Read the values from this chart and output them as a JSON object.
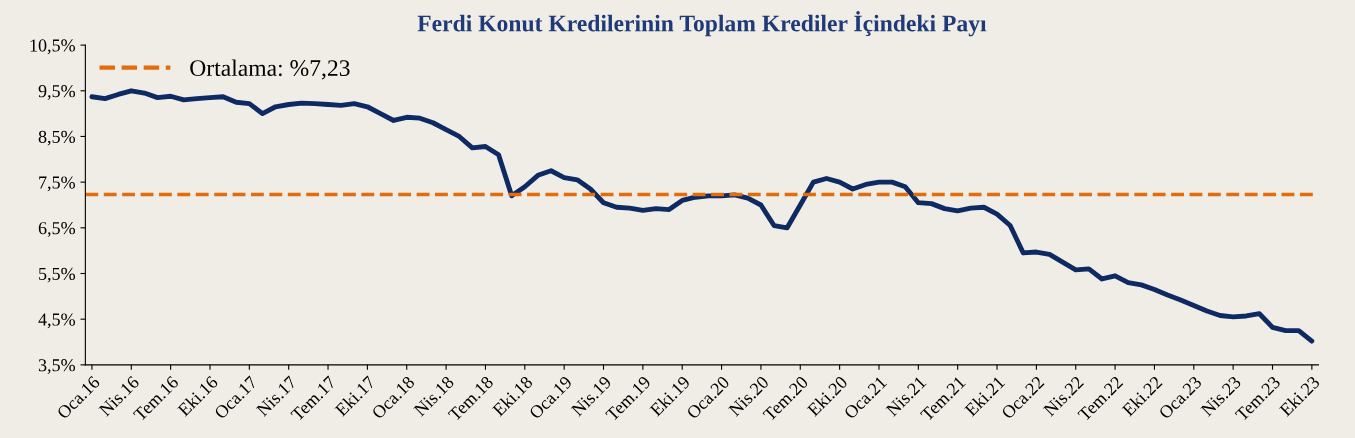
{
  "chart_data": {
    "type": "line",
    "title": "Ferdi Konut Kredilerinin Toplam Krediler İçindeki Payı",
    "categories": [
      "Oca.16",
      null,
      null,
      "Nis.16",
      null,
      null,
      "Tem.16",
      null,
      null,
      "Eki.16",
      null,
      null,
      "Oca.17",
      null,
      null,
      "Nis.17",
      null,
      null,
      "Tem.17",
      null,
      null,
      "Eki.17",
      null,
      null,
      "Oca.18",
      null,
      null,
      "Nis.18",
      null,
      null,
      "Tem.18",
      null,
      null,
      "Eki.18",
      null,
      null,
      "Oca.19",
      null,
      null,
      "Nis.19",
      null,
      null,
      "Tem.19",
      null,
      null,
      "Eki.19",
      null,
      null,
      "Oca.20",
      null,
      null,
      "Nis.20",
      null,
      null,
      "Tem.20",
      null,
      null,
      "Eki.20",
      null,
      null,
      "Oca.21",
      null,
      null,
      "Nis.21",
      null,
      null,
      "Tem.21",
      null,
      null,
      "Eki.21",
      null,
      null,
      "Oca.22",
      null,
      null,
      "Nis.22",
      null,
      null,
      "Tem.22",
      null,
      null,
      "Eki.22",
      null,
      null,
      "Oca.23",
      null,
      null,
      "Nis.23",
      null,
      null,
      "Tem.23",
      null,
      null,
      "Eki.23"
    ],
    "series": [
      {
        "color": "#0e2a63",
        "values": [
          9.37,
          9.33,
          9.42,
          9.5,
          9.45,
          9.35,
          9.38,
          9.3,
          9.33,
          9.35,
          9.37,
          9.25,
          9.22,
          9.0,
          9.15,
          9.2,
          9.23,
          9.22,
          9.2,
          9.18,
          9.22,
          9.15,
          9.0,
          8.85,
          8.92,
          8.9,
          8.8,
          8.65,
          8.5,
          8.25,
          8.28,
          8.1,
          7.2,
          7.4,
          7.65,
          7.75,
          7.6,
          7.55,
          7.35,
          7.05,
          6.95,
          6.93,
          6.88,
          6.92,
          6.9,
          7.1,
          7.17,
          7.2,
          7.2,
          7.22,
          7.15,
          7.0,
          6.55,
          6.5,
          7.0,
          7.5,
          7.58,
          7.5,
          7.35,
          7.45,
          7.5,
          7.5,
          7.4,
          7.05,
          7.03,
          6.92,
          6.87,
          6.93,
          6.95,
          6.8,
          6.55,
          5.95,
          5.97,
          5.92,
          5.75,
          5.58,
          5.6,
          5.38,
          5.45,
          5.3,
          5.25,
          5.15,
          5.03,
          4.92,
          4.8,
          4.68,
          4.58,
          4.55,
          4.57,
          4.62,
          4.32,
          4.25,
          4.25,
          4.02
        ]
      }
    ],
    "ylim": [
      3.5,
      10.5
    ],
    "yticks": [
      {
        "value": 3.5,
        "label": "3,5%"
      },
      {
        "value": 4.5,
        "label": "4,5%"
      },
      {
        "value": 5.5,
        "label": "5,5%"
      },
      {
        "value": 6.5,
        "label": "6,5%"
      },
      {
        "value": 7.5,
        "label": "7,5%"
      },
      {
        "value": 8.5,
        "label": "8,5%"
      },
      {
        "value": 9.5,
        "label": "9,5%"
      },
      {
        "value": 10.5,
        "label": "10,5%"
      }
    ],
    "ref_lines": [
      {
        "axis": "y",
        "value": 7.23,
        "label": "Ortalama: %7,23",
        "color": "#e46c0a",
        "line_style": "dashed"
      }
    ],
    "legend": "top left",
    "grid": false
  }
}
